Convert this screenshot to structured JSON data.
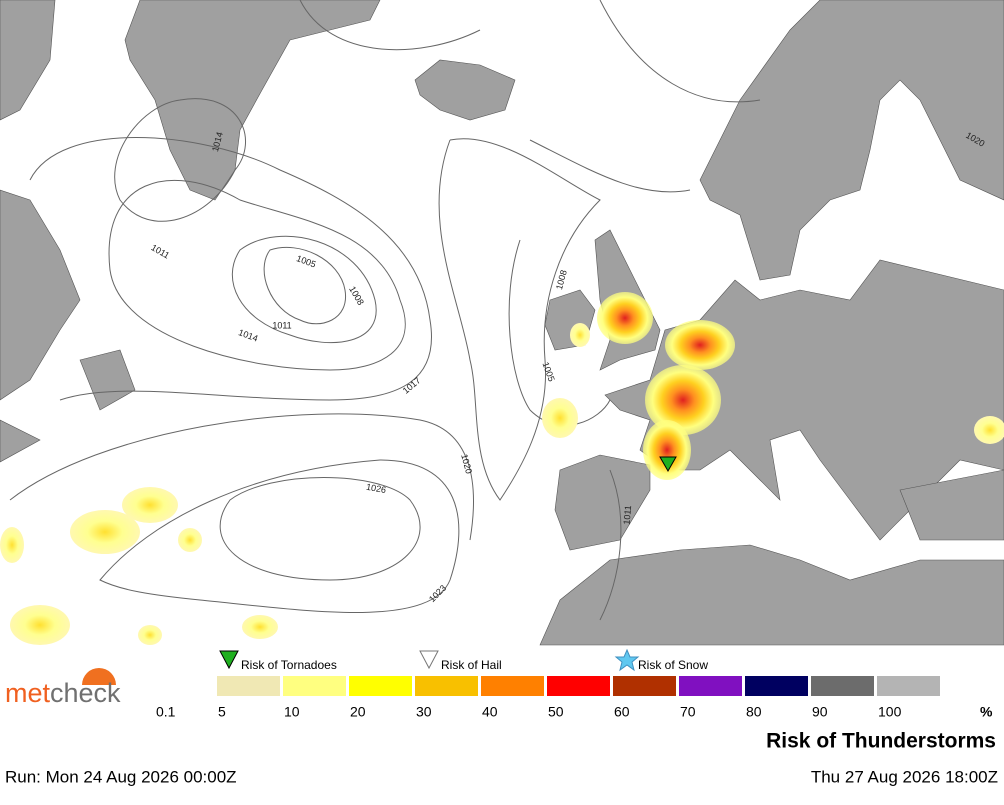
{
  "logo": {
    "part_1": "met",
    "part_2": "check"
  },
  "risk_icons": [
    {
      "label": "Risk of Tornadoes",
      "color": "#20b020"
    },
    {
      "label": "Risk of Hail",
      "color": "#ffffff"
    },
    {
      "label": "Risk of Snow",
      "color": "#60c8f0"
    }
  ],
  "scale": {
    "labels": [
      0.1,
      5,
      10,
      20,
      30,
      40,
      50,
      60,
      70,
      80,
      90,
      100
    ],
    "unit": "%",
    "colors": [
      "#f0e8b4",
      "#ffff80",
      "#ffff00",
      "#f8c000",
      "#ff8000",
      "#ff0000",
      "#b03000",
      "#8010c0",
      "#000060",
      "#6c6c6c",
      "#b4b4b4"
    ]
  },
  "title": "Risk of Thunderstorms",
  "run": "Run: Mon 24 Aug 2026 00:00Z",
  "valid": "Thu 27 Aug 2026 18:00Z",
  "isobar_labels": [
    "1014",
    "1011",
    "1005",
    "1008",
    "1014",
    "1011",
    "1017",
    "1020",
    "1026",
    "1023",
    "1008",
    "1005",
    "1011",
    "1020"
  ]
}
